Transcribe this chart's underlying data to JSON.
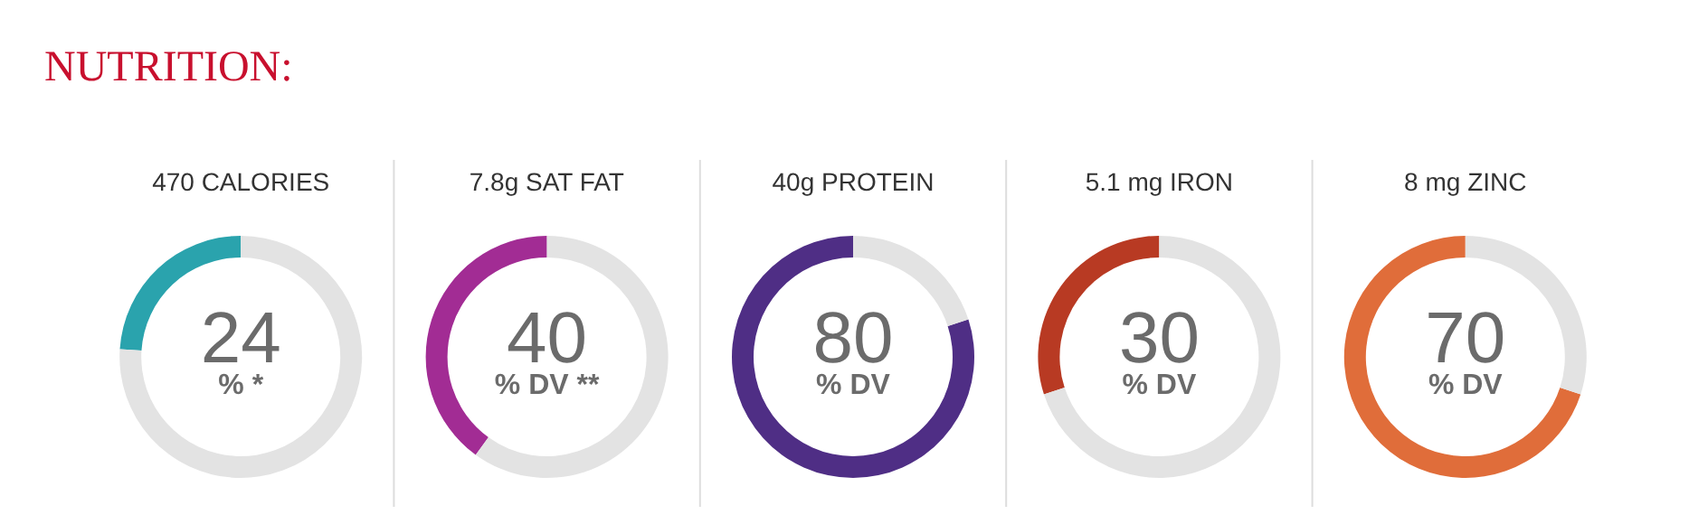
{
  "chart_data": [
    {
      "type": "other",
      "title": "NUTRITION:"
    },
    {
      "type": "donut",
      "title": "470 CALORIES",
      "categories": [
        null,
        null
      ],
      "values": [
        24,
        76
      ],
      "colors": [
        "#2aa3ad",
        "#e3e3e3"
      ],
      "annotations": [
        "24",
        "% *"
      ]
    },
    {
      "type": "donut",
      "title": "7.8g SAT FAT",
      "categories": [
        null,
        null
      ],
      "values": [
        40,
        60
      ],
      "colors": [
        "#a22c94",
        "#e3e3e3"
      ],
      "annotations": [
        "40",
        "% DV **"
      ]
    },
    {
      "type": "donut",
      "title": "40g PROTEIN",
      "categories": [
        null,
        null
      ],
      "values": [
        80,
        20
      ],
      "colors": [
        "#4f2e85",
        "#e3e3e3"
      ],
      "annotations": [
        "80",
        "% DV"
      ]
    },
    {
      "type": "donut",
      "title": "5.1 mg IRON",
      "categories": [
        null,
        null
      ],
      "values": [
        30,
        70
      ],
      "colors": [
        "#b83a23",
        "#e3e3e3"
      ],
      "annotations": [
        "30",
        "% DV"
      ]
    },
    {
      "type": "donut",
      "title": "8 mg ZINC",
      "categories": [
        null,
        null
      ],
      "values": [
        70,
        30
      ],
      "colors": [
        "#e06d3a",
        "#e3e3e3"
      ],
      "annotations": [
        "70",
        "% DV"
      ]
    }
  ]
}
